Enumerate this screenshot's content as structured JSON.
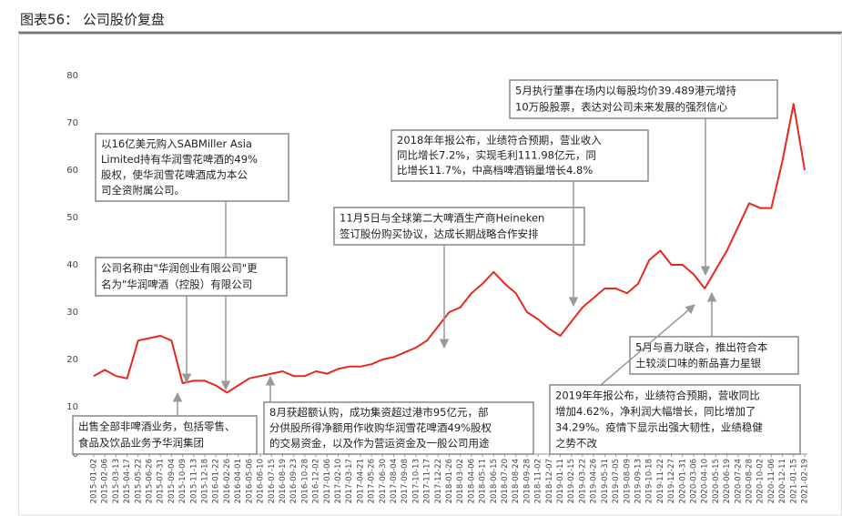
{
  "header": {
    "title": "图表56： 公司股价复盘"
  },
  "chart_data": {
    "type": "line",
    "color": "#e8281e",
    "grid": false,
    "categories": [
      "2015-01-02",
      "2015-02-06",
      "2015-03-13",
      "2015-04-17",
      "2015-05-22",
      "2015-06-26",
      "2015-07-31",
      "2015-09-04",
      "2015-10-09",
      "2015-11-13",
      "2015-12-18",
      "2016-01-22",
      "2016-02-26",
      "2016-04-01",
      "2016-05-06",
      "2016-06-10",
      "2016-07-15",
      "2016-08-19",
      "2016-09-23",
      "2016-10-28",
      "2016-12-02",
      "2017-01-06",
      "2017-02-10",
      "2017-03-17",
      "2017-04-21",
      "2017-05-26",
      "2017-06-30",
      "2017-08-04",
      "2017-09-08",
      "2017-10-13",
      "2017-11-17",
      "2017-12-22",
      "2018-01-26",
      "2018-03-02",
      "2018-04-06",
      "2018-05-11",
      "2018-06-15",
      "2018-07-20",
      "2018-08-24",
      "2018-09-28",
      "2018-11-02",
      "2018-12-07",
      "2019-01-11",
      "2019-02-15",
      "2019-03-22",
      "2019-04-26",
      "2019-05-31",
      "2019-07-05",
      "2019-08-09",
      "2019-09-13",
      "2019-10-18",
      "2019-11-22",
      "2019-12-27",
      "2020-01-31",
      "2020-03-06",
      "2020-04-10",
      "2020-05-15",
      "2020-06-19",
      "2020-07-24",
      "2020-08-28",
      "2020-10-02",
      "2020-11-06",
      "2020-12-11",
      "2021-01-15",
      "2021-02-19"
    ],
    "values": [
      16.5,
      17.8,
      16.5,
      16,
      24,
      24.5,
      25,
      24,
      15,
      15.5,
      15.5,
      14.5,
      13,
      14.5,
      16,
      16.5,
      17,
      17.5,
      16.5,
      16.5,
      17.5,
      17,
      18,
      18.5,
      18.5,
      19,
      20,
      20.5,
      21.5,
      22.5,
      24,
      27,
      30,
      31,
      34,
      36,
      38.5,
      36,
      34,
      30,
      28.5,
      26.5,
      25,
      28,
      31,
      33,
      35,
      35,
      34,
      36,
      41,
      43,
      40,
      40,
      38,
      35,
      39,
      43,
      48,
      53,
      52,
      52,
      62,
      74,
      60
    ],
    "ylim": [
      0,
      80
    ],
    "yticks": [
      0,
      10,
      20,
      30,
      40,
      50,
      60,
      70,
      80
    ],
    "annotations": [
      {
        "lines": [
          "以16亿美元购入SABMiller Asia",
          "Limited持有华润雪花啤酒的49%",
          "股权，使华润雪花啤酒成为本公",
          "司全资附属公司。"
        ]
      },
      {
        "lines": [
          "公司名称由\"华润创业有限公司\"更",
          "名为\"华润啤酒（控股）有限公司"
        ]
      },
      {
        "lines": [
          "出售全部非啤酒业务，包括零售、",
          "食品及饮品业务予华润集团"
        ]
      },
      {
        "lines": [
          "8月获超额认购，成功集资超过港市95亿元，部",
          "分供股所得净额用作收购华润雪花啤酒49%股权",
          "的交易资金，以及作为营运资金及一般公司用途"
        ]
      },
      {
        "lines": [
          "11月5日与全球第二大啤酒生产商Heineken",
          "签订股份购买协议，达成长期战略合作安排"
        ]
      },
      {
        "lines": [
          "2018年年报公布，业绩符合预期，营业收入",
          "同比增长7.2%，实现毛利111.98亿元，同",
          "比增长11.7%，中高档啤酒销量增长4.8%"
        ]
      },
      {
        "lines": [
          "5月执行董事在场内以每股均价39.489港元增持",
          "10万股股票，表达对公司未来发展的强烈信心"
        ]
      },
      {
        "lines": [
          "5月与喜力联合，推出符合本",
          "土较淡口味的新品喜力星银"
        ]
      },
      {
        "lines": [
          "2019年年报公布，业绩符合预期，营收同比",
          "增加4.62%，净利润大幅增长，同比增加了",
          "34.29%。疫情下显示出强大韧性，业绩稳健",
          "之势不改"
        ]
      }
    ]
  }
}
